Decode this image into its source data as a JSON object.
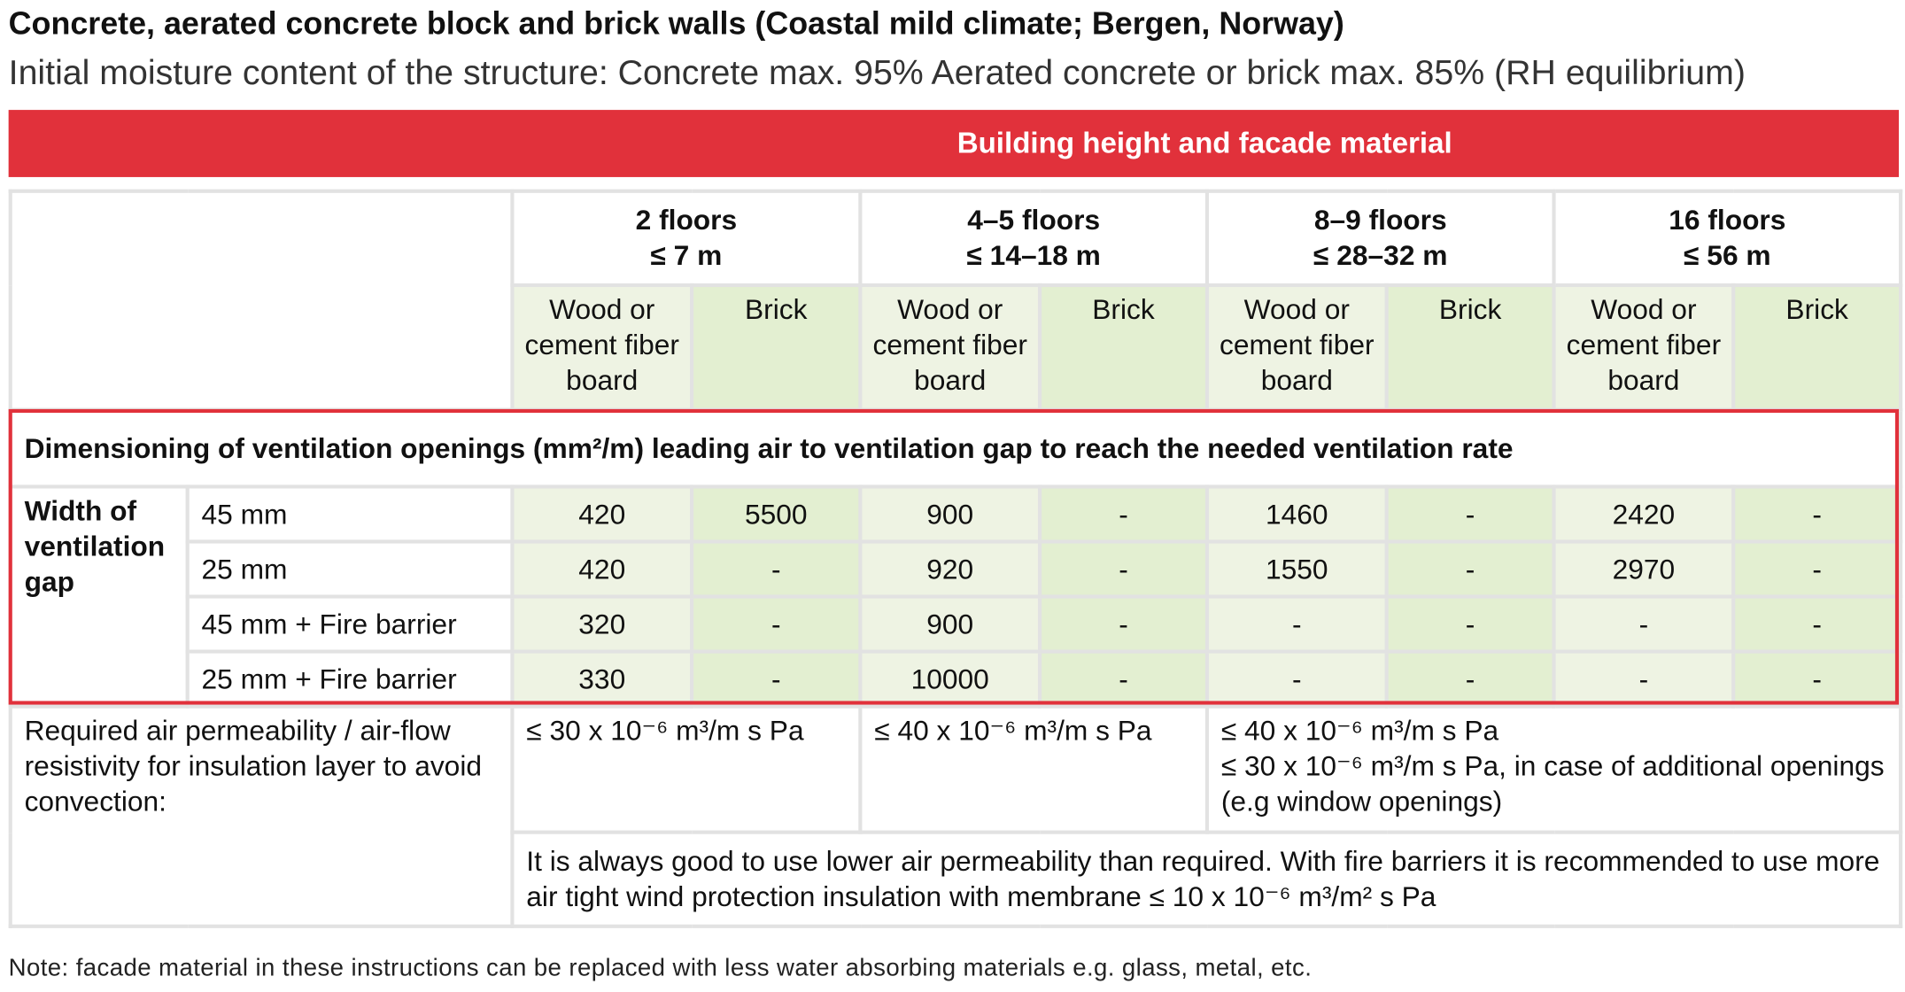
{
  "header": {
    "title": "Concrete, aerated concrete block and brick walls (Coastal mild climate; Bergen, Norway)",
    "subtitle": "Initial moisture content of the structure: Concrete max. 95% Aerated concrete or brick max. 85% (RH equilibrium)"
  },
  "table": {
    "banner": "Building height and facade material",
    "groups": [
      {
        "floors": "2 floors",
        "height": "≤ 7 m",
        "materials": [
          "Wood or cement fiber board",
          "Brick"
        ]
      },
      {
        "floors": "4–5 floors",
        "height": "≤ 14–18 m",
        "materials": [
          "Wood or cement fiber board",
          "Brick"
        ]
      },
      {
        "floors": "8–9 floors",
        "height": "≤ 28–32 m",
        "materials": [
          "Wood or cement fiber board",
          "Brick"
        ]
      },
      {
        "floors": "16 floors",
        "height": "≤ 56 m",
        "materials": [
          "Wood or cement fiber board",
          "Brick"
        ]
      }
    ],
    "section": "Dimensioning of ventilation openings (mm²/m) leading air to ventilation gap to reach the needed ventilation rate",
    "row_header": "Width of ventilation gap",
    "rows": [
      {
        "label": "45 mm",
        "cells": [
          420,
          5500,
          900,
          "-",
          1460,
          "-",
          2420,
          "-"
        ]
      },
      {
        "label": "25 mm",
        "cells": [
          420,
          "-",
          920,
          "-",
          1550,
          "-",
          2970,
          "-"
        ]
      },
      {
        "label": "45 mm + Fire barrier",
        "cells": [
          320,
          "-",
          900,
          "-",
          "-",
          "-",
          "-",
          "-"
        ]
      },
      {
        "label": "25 mm + Fire barrier",
        "cells": [
          330,
          "-",
          10000,
          "-",
          "-",
          "-",
          "-",
          "-"
        ]
      }
    ],
    "permeability": {
      "label": "Required air permeability / air-flow resistivity for insulation layer to avoid convection:",
      "values": [
        [
          "≤ 30 x 10⁻⁶ m³/m s Pa"
        ],
        [
          "≤ 40 x 10⁻⁶ m³/m s Pa"
        ],
        [
          "≤ 40 x 10⁻⁶ m³/m s Pa",
          "≤ 30 x 10⁻⁶ m³/m s Pa, in case of additional openings (e.g window openings)"
        ]
      ]
    },
    "advice": "It is always good to use lower air permeability than required. With fire barriers it is recommended to use more air tight wind protection insulation with membrane ≤ 10 x 10⁻⁶ m³/m² s Pa"
  },
  "note": "Note: facade material in these instructions can be replaced with less water absorbing materials e.g. glass, metal, etc."
}
